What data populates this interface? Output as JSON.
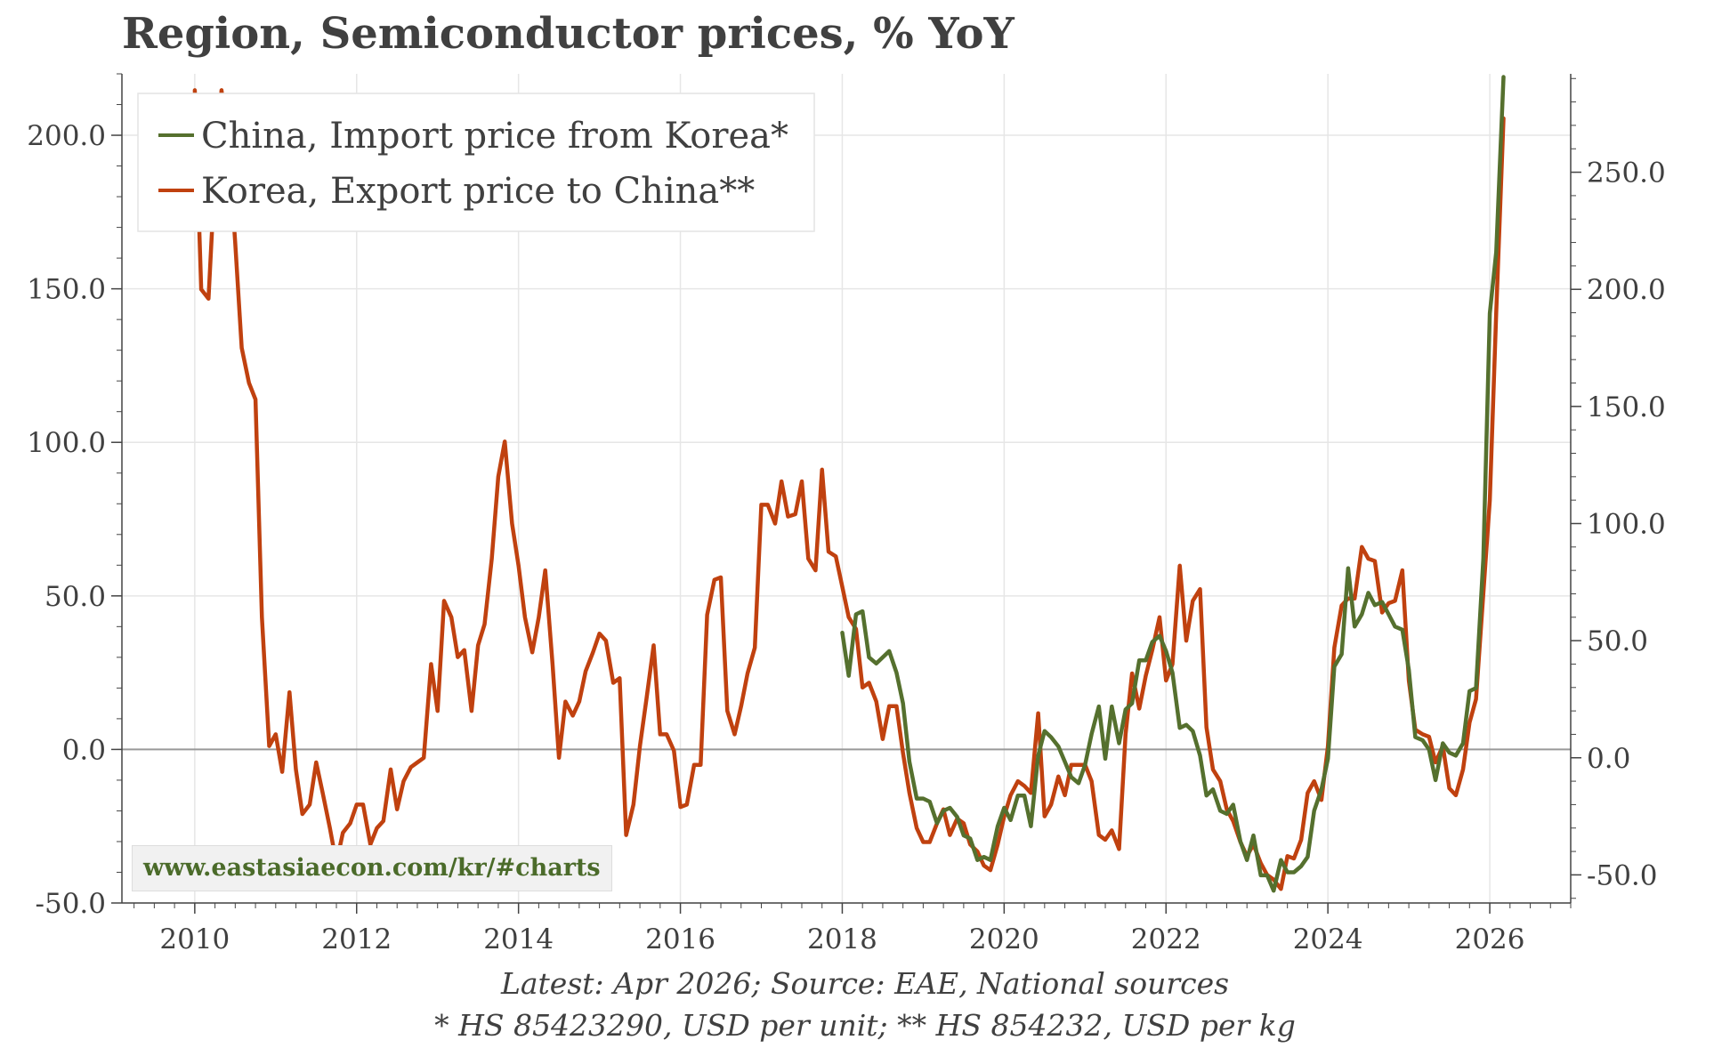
{
  "chart_data": {
    "type": "line",
    "title": "Region, Semiconductor prices, % YoY",
    "xlim": [
      2009.1,
      2027.0
    ],
    "ylim_left": [
      -50,
      220
    ],
    "ylim_right": [
      -62,
      292
    ],
    "x_ticks": [
      "2010",
      "2012",
      "2014",
      "2016",
      "2018",
      "2020",
      "2022",
      "2024",
      "2026"
    ],
    "y_ticks_left": [
      "-50.0",
      "0.0",
      "50.0",
      "100.0",
      "150.0",
      "200.0"
    ],
    "y_ticks_right": [
      "-50.0",
      "0.0",
      "50.0",
      "100.0",
      "150.0",
      "200.0",
      "250.0"
    ],
    "grid": true,
    "legend_placement": "top-left",
    "series": [
      {
        "name": "China, Import price from Korea*",
        "axis": "left",
        "color": "#55702e",
        "points": [
          [
            2018.0,
            38
          ],
          [
            2018.08,
            24
          ],
          [
            2018.17,
            44
          ],
          [
            2018.25,
            45
          ],
          [
            2018.33,
            30
          ],
          [
            2018.42,
            28
          ],
          [
            2018.5,
            30
          ],
          [
            2018.58,
            32
          ],
          [
            2018.67,
            25
          ],
          [
            2018.75,
            15
          ],
          [
            2018.83,
            -4
          ],
          [
            2018.92,
            -16
          ],
          [
            2019.0,
            -16
          ],
          [
            2019.08,
            -17
          ],
          [
            2019.17,
            -24
          ],
          [
            2019.25,
            -20
          ],
          [
            2019.33,
            -19
          ],
          [
            2019.42,
            -22
          ],
          [
            2019.5,
            -28
          ],
          [
            2019.58,
            -29
          ],
          [
            2019.67,
            -36
          ],
          [
            2019.75,
            -35
          ],
          [
            2019.83,
            -36
          ],
          [
            2019.92,
            -25
          ],
          [
            2020.0,
            -19
          ],
          [
            2020.08,
            -23
          ],
          [
            2020.17,
            -15
          ],
          [
            2020.25,
            -15
          ],
          [
            2020.33,
            -25
          ],
          [
            2020.42,
            -2
          ],
          [
            2020.5,
            6
          ],
          [
            2020.58,
            4
          ],
          [
            2020.67,
            1
          ],
          [
            2020.75,
            -4
          ],
          [
            2020.83,
            -9
          ],
          [
            2020.92,
            -11
          ],
          [
            2021.0,
            -5
          ],
          [
            2021.08,
            5
          ],
          [
            2021.17,
            14
          ],
          [
            2021.25,
            -3
          ],
          [
            2021.33,
            14
          ],
          [
            2021.42,
            2
          ],
          [
            2021.5,
            13
          ],
          [
            2021.58,
            15
          ],
          [
            2021.67,
            29
          ],
          [
            2021.75,
            29
          ],
          [
            2021.83,
            35
          ],
          [
            2021.92,
            37
          ],
          [
            2022.0,
            32
          ],
          [
            2022.08,
            25
          ],
          [
            2022.17,
            7
          ],
          [
            2022.25,
            8
          ],
          [
            2022.33,
            6
          ],
          [
            2022.42,
            -2
          ],
          [
            2022.5,
            -15
          ],
          [
            2022.58,
            -13
          ],
          [
            2022.67,
            -20
          ],
          [
            2022.75,
            -21
          ],
          [
            2022.83,
            -18
          ],
          [
            2022.92,
            -30
          ],
          [
            2023.0,
            -36
          ],
          [
            2023.08,
            -28
          ],
          [
            2023.17,
            -41
          ],
          [
            2023.25,
            -41
          ],
          [
            2023.33,
            -46
          ],
          [
            2023.42,
            -36
          ],
          [
            2023.5,
            -40
          ],
          [
            2023.58,
            -40
          ],
          [
            2023.67,
            -38
          ],
          [
            2023.75,
            -35
          ],
          [
            2023.83,
            -20
          ],
          [
            2023.92,
            -13
          ],
          [
            2024.0,
            -3
          ],
          [
            2024.08,
            27
          ],
          [
            2024.17,
            31
          ],
          [
            2024.25,
            59
          ],
          [
            2024.33,
            40
          ],
          [
            2024.42,
            44
          ],
          [
            2024.5,
            51
          ],
          [
            2024.58,
            47
          ],
          [
            2024.67,
            48
          ],
          [
            2024.75,
            44
          ],
          [
            2024.83,
            40
          ],
          [
            2024.92,
            39
          ],
          [
            2025.0,
            26
          ],
          [
            2025.08,
            4
          ],
          [
            2025.17,
            3
          ],
          [
            2025.25,
            0
          ],
          [
            2025.33,
            -10
          ],
          [
            2025.42,
            2
          ],
          [
            2025.5,
            -1
          ],
          [
            2025.58,
            -2
          ],
          [
            2025.67,
            2
          ],
          [
            2025.75,
            19
          ],
          [
            2025.83,
            20
          ],
          [
            2025.92,
            62
          ],
          [
            2026.0,
            142
          ],
          [
            2026.08,
            162
          ],
          [
            2026.17,
            219
          ]
        ]
      },
      {
        "name": "Korea, Export price to China**",
        "axis": "right",
        "color": "#c0410f",
        "points": [
          [
            2010.0,
            285
          ],
          [
            2010.08,
            200
          ],
          [
            2010.17,
            196
          ],
          [
            2010.25,
            250
          ],
          [
            2010.33,
            285
          ],
          [
            2010.42,
            260
          ],
          [
            2010.5,
            220
          ],
          [
            2010.58,
            175
          ],
          [
            2010.67,
            160
          ],
          [
            2010.75,
            153
          ],
          [
            2010.83,
            60
          ],
          [
            2010.92,
            5
          ],
          [
            2011.0,
            10
          ],
          [
            2011.08,
            -6
          ],
          [
            2011.17,
            28
          ],
          [
            2011.25,
            -5
          ],
          [
            2011.33,
            -24
          ],
          [
            2011.42,
            -20
          ],
          [
            2011.5,
            -2
          ],
          [
            2011.58,
            -15
          ],
          [
            2011.67,
            -30
          ],
          [
            2011.75,
            -45
          ],
          [
            2011.83,
            -32
          ],
          [
            2011.92,
            -28
          ],
          [
            2012.0,
            -20
          ],
          [
            2012.08,
            -20
          ],
          [
            2012.17,
            -37
          ],
          [
            2012.25,
            -30
          ],
          [
            2012.33,
            -27
          ],
          [
            2012.42,
            -5
          ],
          [
            2012.5,
            -22
          ],
          [
            2012.58,
            -10
          ],
          [
            2012.67,
            -4
          ],
          [
            2012.75,
            -2
          ],
          [
            2012.83,
            0
          ],
          [
            2012.92,
            40
          ],
          [
            2013.0,
            20
          ],
          [
            2013.08,
            67
          ],
          [
            2013.17,
            60
          ],
          [
            2013.25,
            43
          ],
          [
            2013.33,
            46
          ],
          [
            2013.42,
            20
          ],
          [
            2013.5,
            48
          ],
          [
            2013.58,
            57
          ],
          [
            2013.67,
            85
          ],
          [
            2013.75,
            120
          ],
          [
            2013.83,
            135
          ],
          [
            2013.92,
            100
          ],
          [
            2014.0,
            82
          ],
          [
            2014.08,
            60
          ],
          [
            2014.17,
            45
          ],
          [
            2014.25,
            60
          ],
          [
            2014.33,
            80
          ],
          [
            2014.42,
            40
          ],
          [
            2014.5,
            0
          ],
          [
            2014.58,
            24
          ],
          [
            2014.67,
            18
          ],
          [
            2014.75,
            24
          ],
          [
            2014.83,
            37
          ],
          [
            2014.92,
            45
          ],
          [
            2015.0,
            53
          ],
          [
            2015.08,
            50
          ],
          [
            2015.17,
            32
          ],
          [
            2015.25,
            34
          ],
          [
            2015.33,
            -33
          ],
          [
            2015.42,
            -20
          ],
          [
            2015.5,
            5
          ],
          [
            2015.58,
            25
          ],
          [
            2015.67,
            48
          ],
          [
            2015.75,
            10
          ],
          [
            2015.83,
            10
          ],
          [
            2015.92,
            3
          ],
          [
            2016.0,
            -21
          ],
          [
            2016.08,
            -20
          ],
          [
            2016.17,
            -3
          ],
          [
            2016.25,
            -3
          ],
          [
            2016.33,
            61
          ],
          [
            2016.42,
            76
          ],
          [
            2016.5,
            77
          ],
          [
            2016.58,
            20
          ],
          [
            2016.67,
            10
          ],
          [
            2016.75,
            22
          ],
          [
            2016.83,
            36
          ],
          [
            2016.92,
            47
          ],
          [
            2017.0,
            108
          ],
          [
            2017.08,
            108
          ],
          [
            2017.17,
            100
          ],
          [
            2017.25,
            118
          ],
          [
            2017.33,
            103
          ],
          [
            2017.42,
            104
          ],
          [
            2017.5,
            118
          ],
          [
            2017.58,
            85
          ],
          [
            2017.67,
            80
          ],
          [
            2017.75,
            123
          ],
          [
            2017.83,
            88
          ],
          [
            2017.92,
            86
          ],
          [
            2018.0,
            73
          ],
          [
            2018.08,
            60
          ],
          [
            2018.17,
            55
          ],
          [
            2018.25,
            30
          ],
          [
            2018.33,
            32
          ],
          [
            2018.42,
            24
          ],
          [
            2018.5,
            8
          ],
          [
            2018.58,
            22
          ],
          [
            2018.67,
            22
          ],
          [
            2018.75,
            2
          ],
          [
            2018.83,
            -15
          ],
          [
            2018.92,
            -30
          ],
          [
            2019.0,
            -36
          ],
          [
            2019.08,
            -36
          ],
          [
            2019.17,
            -28
          ],
          [
            2019.25,
            -22
          ],
          [
            2019.33,
            -33
          ],
          [
            2019.42,
            -26
          ],
          [
            2019.5,
            -28
          ],
          [
            2019.58,
            -37
          ],
          [
            2019.67,
            -40
          ],
          [
            2019.75,
            -46
          ],
          [
            2019.83,
            -48
          ],
          [
            2019.92,
            -37
          ],
          [
            2020.0,
            -25
          ],
          [
            2020.08,
            -16
          ],
          [
            2020.17,
            -10
          ],
          [
            2020.25,
            -12
          ],
          [
            2020.33,
            -15
          ],
          [
            2020.42,
            19
          ],
          [
            2020.5,
            -25
          ],
          [
            2020.58,
            -20
          ],
          [
            2020.67,
            -8
          ],
          [
            2020.75,
            -16
          ],
          [
            2020.83,
            -3
          ],
          [
            2020.92,
            -3
          ],
          [
            2021.0,
            -3
          ],
          [
            2021.08,
            -10
          ],
          [
            2021.17,
            -33
          ],
          [
            2021.25,
            -35
          ],
          [
            2021.33,
            -31
          ],
          [
            2021.42,
            -39
          ],
          [
            2021.5,
            10
          ],
          [
            2021.58,
            36
          ],
          [
            2021.67,
            21
          ],
          [
            2021.75,
            35
          ],
          [
            2021.83,
            46
          ],
          [
            2021.92,
            60
          ],
          [
            2022.0,
            33
          ],
          [
            2022.08,
            40
          ],
          [
            2022.17,
            82
          ],
          [
            2022.25,
            50
          ],
          [
            2022.33,
            67
          ],
          [
            2022.42,
            72
          ],
          [
            2022.5,
            13
          ],
          [
            2022.58,
            -5
          ],
          [
            2022.67,
            -10
          ],
          [
            2022.75,
            -22
          ],
          [
            2022.83,
            -27
          ],
          [
            2022.92,
            -36
          ],
          [
            2023.0,
            -42
          ],
          [
            2023.08,
            -37
          ],
          [
            2023.17,
            -45
          ],
          [
            2023.25,
            -50
          ],
          [
            2023.33,
            -52
          ],
          [
            2023.42,
            -56
          ],
          [
            2023.5,
            -42
          ],
          [
            2023.58,
            -43
          ],
          [
            2023.67,
            -35
          ],
          [
            2023.75,
            -15
          ],
          [
            2023.83,
            -10
          ],
          [
            2023.92,
            -18
          ],
          [
            2024.0,
            5
          ],
          [
            2024.08,
            47
          ],
          [
            2024.17,
            65
          ],
          [
            2024.25,
            68
          ],
          [
            2024.33,
            68
          ],
          [
            2024.42,
            90
          ],
          [
            2024.5,
            85
          ],
          [
            2024.58,
            84
          ],
          [
            2024.67,
            62
          ],
          [
            2024.75,
            66
          ],
          [
            2024.83,
            67
          ],
          [
            2024.92,
            80
          ],
          [
            2025.0,
            33
          ],
          [
            2025.08,
            12
          ],
          [
            2025.17,
            10
          ],
          [
            2025.25,
            9
          ],
          [
            2025.33,
            -2
          ],
          [
            2025.42,
            5
          ],
          [
            2025.5,
            -13
          ],
          [
            2025.58,
            -16
          ],
          [
            2025.67,
            -5
          ],
          [
            2025.75,
            15
          ],
          [
            2025.83,
            25
          ],
          [
            2025.92,
            70
          ],
          [
            2026.0,
            110
          ],
          [
            2026.08,
            190
          ],
          [
            2026.17,
            273
          ]
        ]
      }
    ],
    "annotations": [
      "www.eastasiaecon.com/kr/#charts"
    ]
  },
  "legend": {
    "label_1": "China, Import price from Korea*",
    "label_2": "Korea, Export price to China**"
  },
  "watermark": "www.eastasiaecon.com/kr/#charts",
  "footnotes": {
    "line_1": "Latest: Apr 2026; Source: EAE, National sources",
    "line_2": "* HS 85423290, USD per unit; ** HS 854232, USD per kg"
  },
  "colors": {
    "series_1": "#55702e",
    "series_2": "#c0410f",
    "grid": "#e6e6e6",
    "zero_line": "#999999"
  }
}
